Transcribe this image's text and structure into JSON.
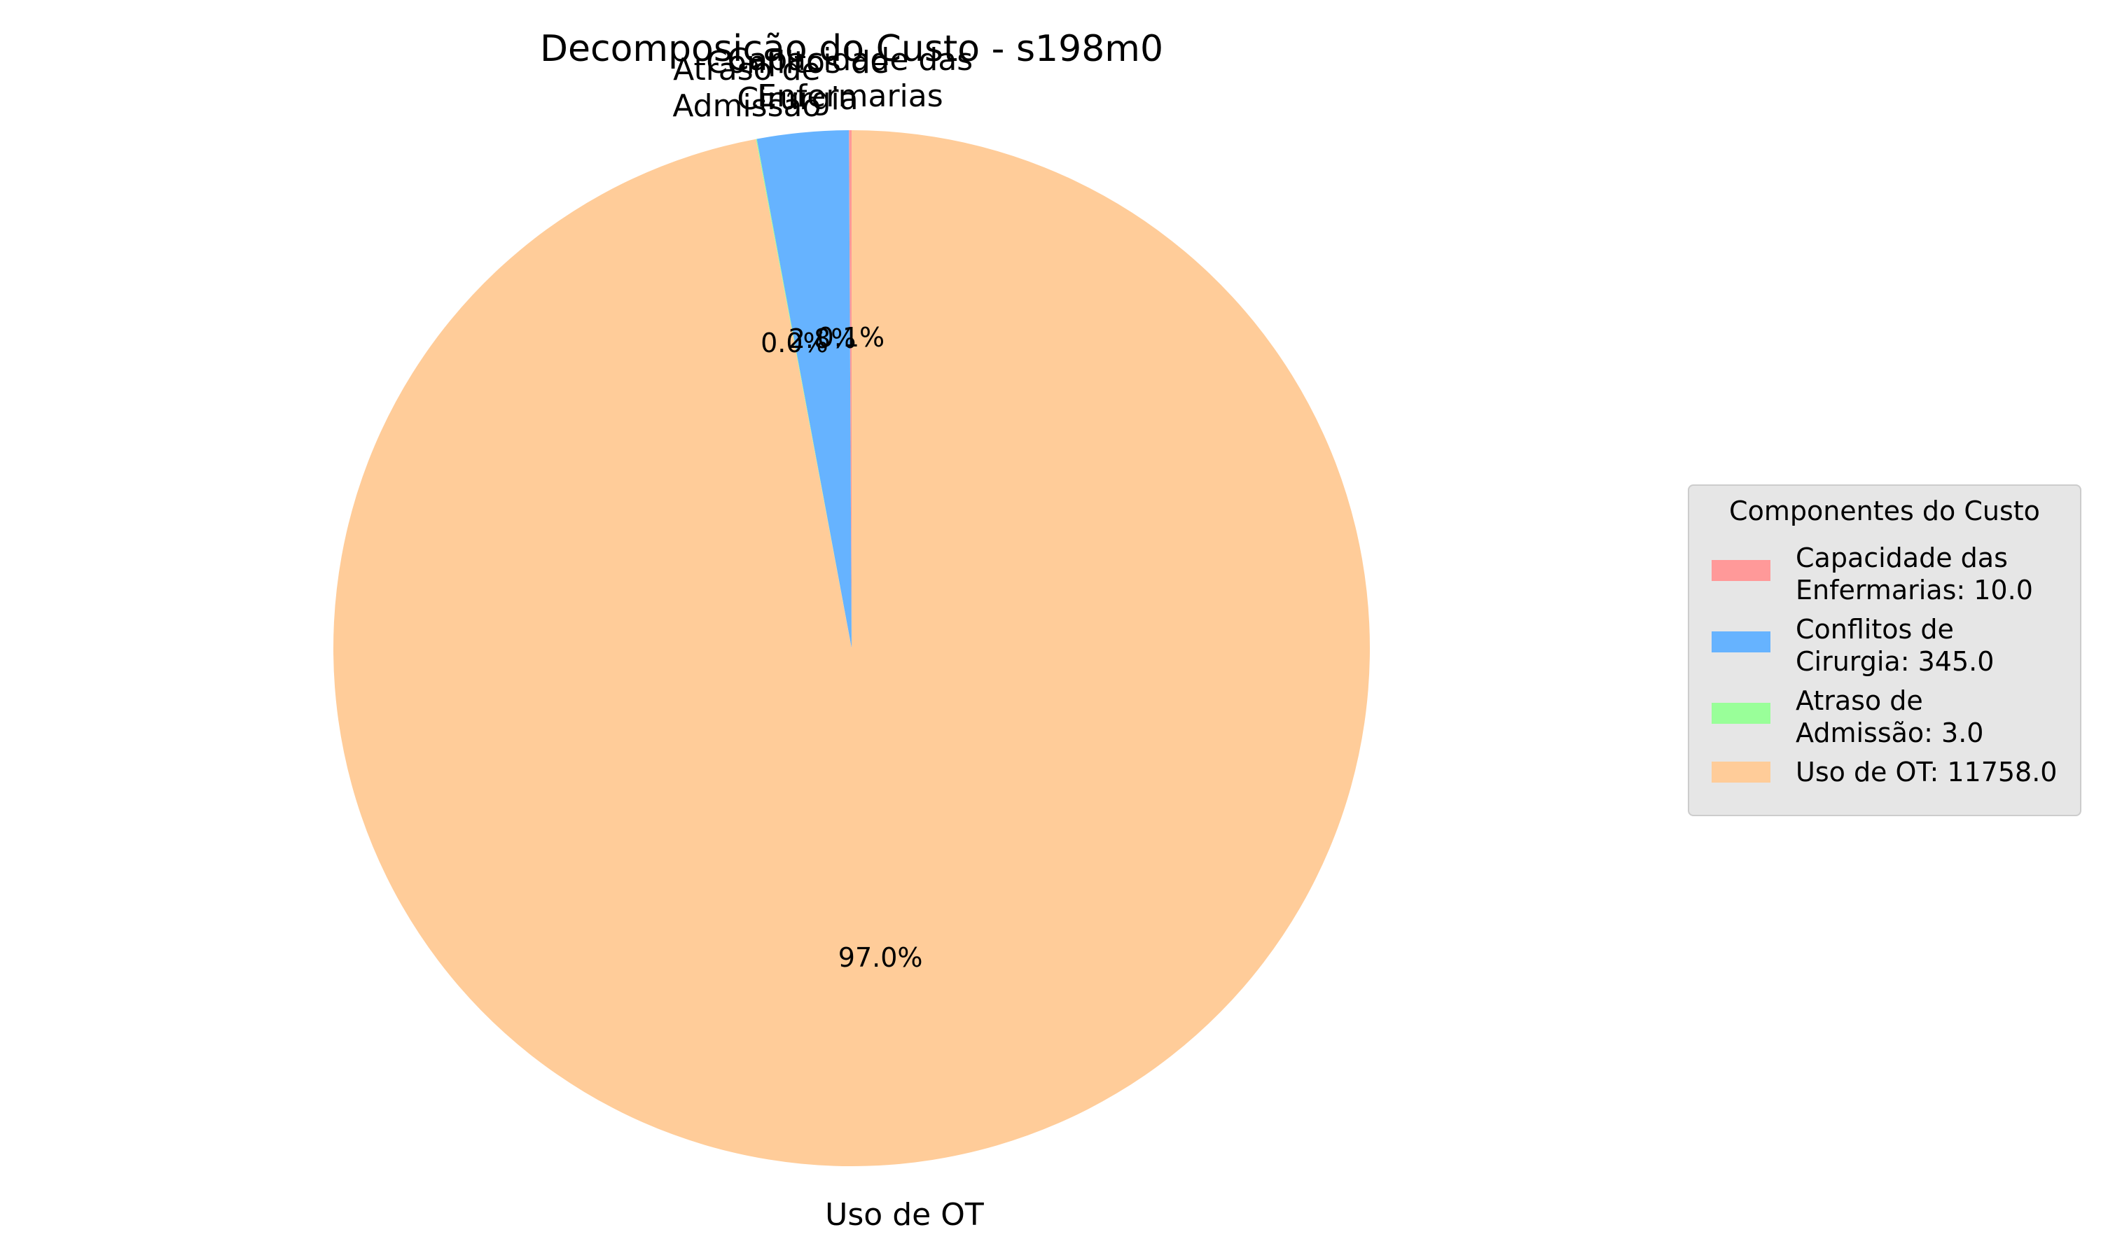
{
  "chart_data": {
    "type": "pie",
    "title": "Decomposição do Custo - s198m0",
    "slices": [
      {
        "label": "Capacidade das\nEnfermarias",
        "value": 10.0,
        "pct_label": "0.1%",
        "color": "#ff9999",
        "legend": "Capacidade das\nEnfermarias: 10.0"
      },
      {
        "label": "Conflitos de\nCirurgia",
        "value": 345.0,
        "pct_label": "2.8%",
        "color": "#66b3ff",
        "legend": "Conflitos de\nCirurgia: 345.0"
      },
      {
        "label": "Atraso de\nAdmissão",
        "value": 3.0,
        "pct_label": "0.0%",
        "color": "#99ff99",
        "legend": "Atraso de\nAdmissão: 3.0"
      },
      {
        "label": "Uso de OT",
        "value": 11758.0,
        "pct_label": "97.0%",
        "color": "#ffcc99",
        "legend": "Uso de OT: 11758.0"
      }
    ],
    "legend_title": "Componentes do Custo",
    "legend_position": "right"
  }
}
